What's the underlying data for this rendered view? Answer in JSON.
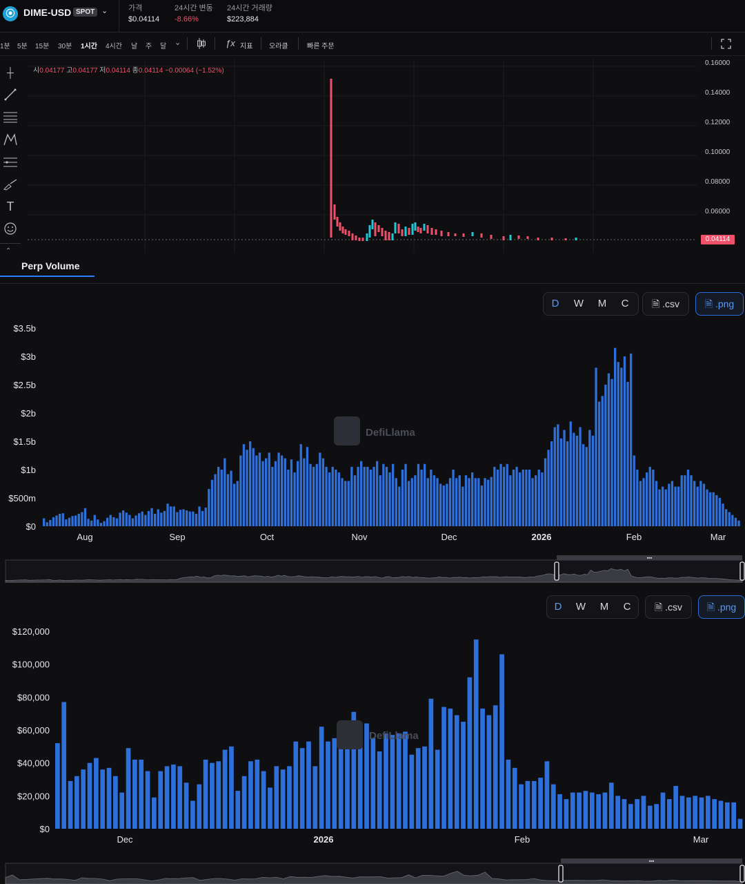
{
  "header": {
    "pair": "DIME-USD",
    "badge": "SPOT",
    "logo_glyph": "⦿",
    "stats": [
      {
        "label": "가격",
        "value": "$0.04114",
        "color": "#e6e6ea"
      },
      {
        "label": "24시간 변동",
        "value": "-8.66%",
        "color": "#f0516a"
      },
      {
        "label": "24시간 거래량",
        "value": "$223,884",
        "color": "#e6e6ea"
      }
    ]
  },
  "toolbar": {
    "timeframes": [
      "1분",
      "5분",
      "15분",
      "30분",
      "1시간",
      "4시간",
      "날",
      "주",
      "달"
    ],
    "active_timeframe": "1시간",
    "indicators_label": "지표",
    "oracle_label": "오라클",
    "quick_order_label": "빠른 주문"
  },
  "candle": {
    "ohlc": {
      "open_label": "시",
      "open": "0.04177",
      "high_label": "고",
      "high": "0.04177",
      "low_label": "저",
      "low": "0.04114",
      "close_label": "종",
      "close": "0.04114",
      "change": "−0.00064 (−1.52%)"
    },
    "y_ticks": [
      "0.16000",
      "0.14000",
      "0.12000",
      "0.10000",
      "0.08000",
      "0.06000"
    ],
    "last_price": "0.04114",
    "colors": {
      "up": "#1fc7d4",
      "down": "#f0516a"
    }
  },
  "tab": {
    "label": "Perp Volume"
  },
  "controls": {
    "periods": [
      "D",
      "W",
      "M",
      "C"
    ],
    "active_period": "D",
    "csv_label": ".csv",
    "png_label": ".png"
  },
  "watermark": "DefiLlama",
  "chart_data": [
    {
      "type": "bar",
      "title": "",
      "ylabel": "",
      "ylim": [
        0,
        3500000000
      ],
      "y_ticks": [
        "$0",
        "$500m",
        "$1b",
        "$1.5b",
        "$2b",
        "$2.5b",
        "$3b",
        "$3.5b"
      ],
      "x_ticks": [
        {
          "label": "Aug",
          "bold": false
        },
        {
          "label": "Sep",
          "bold": false
        },
        {
          "label": "Oct",
          "bold": false
        },
        {
          "label": "Nov",
          "bold": false
        },
        {
          "label": "Dec",
          "bold": false
        },
        {
          "label": "2026",
          "bold": true
        },
        {
          "label": "Feb",
          "bold": false
        },
        {
          "label": "Mar",
          "bold": false
        }
      ],
      "bar_color": "#2f6fd9",
      "values": [
        140,
        70,
        110,
        160,
        190,
        220,
        230,
        120,
        150,
        180,
        190,
        220,
        250,
        320,
        130,
        100,
        200,
        120,
        60,
        90,
        150,
        200,
        160,
        140,
        240,
        280,
        240,
        200,
        140,
        190,
        230,
        260,
        200,
        270,
        320,
        220,
        300,
        240,
        270,
        400,
        350,
        350,
        250,
        290,
        300,
        280,
        260,
        260,
        220,
        350,
        270,
        330,
        660,
        820,
        920,
        1050,
        1000,
        1200,
        920,
        980,
        750,
        800,
        1250,
        1450,
        1350,
        1500,
        1380,
        1250,
        1300,
        1150,
        1200,
        1300,
        1050,
        1150,
        1300,
        1250,
        1200,
        1000,
        1180,
        950,
        1150,
        1450,
        1200,
        1400,
        1100,
        1050,
        1100,
        1300,
        1200,
        1050,
        950,
        1050,
        1000,
        950,
        850,
        800,
        800,
        1050,
        900,
        1050,
        1150,
        1050,
        1050,
        1000,
        1050,
        1150,
        900,
        1100,
        1050,
        950,
        1100,
        850,
        700,
        1000,
        1100,
        800,
        850,
        900,
        1100,
        1000,
        1100,
        850,
        1000,
        900,
        850,
        750,
        720,
        750,
        850,
        1000,
        850,
        900,
        700,
        900,
        850,
        950,
        850,
        850,
        720,
        850,
        820,
        870,
        1050,
        1000,
        1100,
        1050,
        1100,
        900,
        1000,
        1050,
        950,
        1000,
        1000,
        1000,
        850,
        900,
        1000,
        950,
        1200,
        1350,
        1500,
        1750,
        1800,
        1550,
        1700,
        1500,
        1850,
        1650,
        1600,
        1750,
        1450,
        1400,
        1700,
        1600,
        2800,
        2200,
        2300,
        2500,
        2700,
        2600,
        3150,
        2900,
        2800,
        3000,
        2550,
        3050,
        1250,
        1000,
        800,
        850,
        950,
        1050,
        1000,
        800,
        650,
        700,
        650,
        750,
        800,
        700,
        700,
        900,
        900,
        1000,
        900,
        800,
        700,
        800,
        750,
        650,
        600,
        600,
        550,
        500,
        400,
        300,
        250,
        200,
        150,
        100
      ],
      "value_scale_note_units": "millions USD"
    },
    {
      "type": "bar",
      "title": "",
      "ylabel": "",
      "ylim": [
        0,
        120000
      ],
      "y_ticks": [
        "$0",
        "$20,000",
        "$40,000",
        "$60,000",
        "$80,000",
        "$100,000",
        "$120,000"
      ],
      "x_ticks": [
        {
          "label": "Dec",
          "bold": false
        },
        {
          "label": "2026",
          "bold": true
        },
        {
          "label": "Feb",
          "bold": false
        },
        {
          "label": "Mar",
          "bold": false
        }
      ],
      "bar_color": "#2f6fd9",
      "values": [
        52000,
        77000,
        29000,
        32000,
        36000,
        40000,
        43000,
        36000,
        37000,
        32000,
        22000,
        49000,
        42000,
        42000,
        35000,
        19000,
        35000,
        38000,
        39000,
        38000,
        28000,
        17000,
        27000,
        42000,
        40000,
        41000,
        48000,
        50000,
        23000,
        32000,
        41000,
        42000,
        35000,
        25000,
        38000,
        36000,
        38000,
        53000,
        49000,
        53000,
        38000,
        62000,
        53000,
        55000,
        52000,
        63000,
        71000,
        63000,
        64000,
        55000,
        47000,
        58000,
        57000,
        58000,
        59000,
        45000,
        49000,
        50000,
        79000,
        48000,
        74000,
        73000,
        69000,
        65000,
        92000,
        115000,
        73000,
        69000,
        75000,
        106000,
        42000,
        37000,
        27000,
        29000,
        29000,
        31000,
        41000,
        27000,
        21000,
        18000,
        22000,
        22000,
        23000,
        22000,
        21000,
        22000,
        28000,
        20000,
        18000,
        15000,
        18000,
        20000,
        14000,
        15000,
        22000,
        18000,
        26000,
        20000,
        19000,
        20000,
        19000,
        20000,
        18000,
        17000,
        16000,
        16000,
        6000
      ]
    }
  ]
}
